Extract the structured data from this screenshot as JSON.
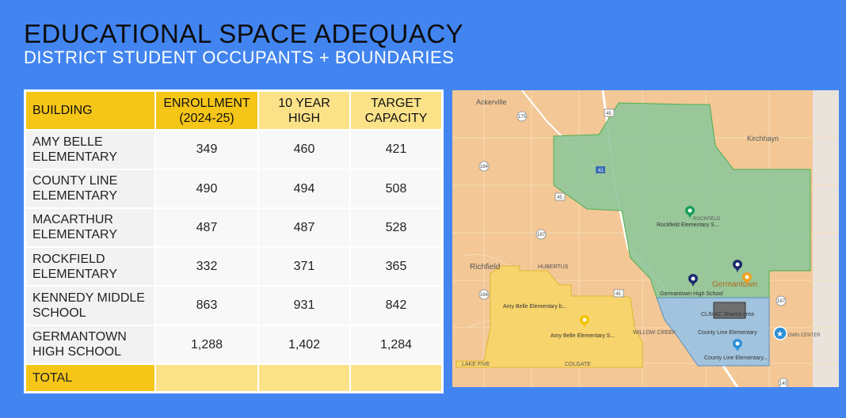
{
  "header": {
    "title": "EDUCATIONAL SPACE ADEQUACY",
    "subtitle": "DISTRICT STUDENT OCCUPANTS + BOUNDARIES"
  },
  "table": {
    "columns": {
      "building": "BUILDING",
      "enrollment_1": "ENROLLMENT",
      "enrollment_2": "(2024-25)",
      "high_1": "10 YEAR",
      "high_2": "HIGH",
      "capacity_1": "TARGET",
      "capacity_2": "CAPACITY"
    },
    "rows": [
      {
        "name_1": "AMY BELLE",
        "name_2": "ELEMENTARY",
        "enrollment": "349",
        "high": "460",
        "capacity": "421"
      },
      {
        "name_1": "COUNTY LINE",
        "name_2": "ELEMENTARY",
        "enrollment": "490",
        "high": "494",
        "capacity": "508"
      },
      {
        "name_1": "MACARTHUR",
        "name_2": "ELEMENTARY",
        "enrollment": "487",
        "high": "487",
        "capacity": "528"
      },
      {
        "name_1": "ROCKFIELD",
        "name_2": "ELEMENTARY",
        "enrollment": "332",
        "high": "371",
        "capacity": "365"
      },
      {
        "name_1": "KENNEDY MIDDLE",
        "name_2": "SCHOOL",
        "enrollment": "863",
        "high": "931",
        "capacity": "842"
      },
      {
        "name_1": "GERMANTOWN",
        "name_2": "HIGH SCHOOL",
        "enrollment": "1,288",
        "high": "1,402",
        "capacity": "1,284"
      }
    ],
    "total_label": "TOTAL"
  },
  "map": {
    "places": {
      "ackerville": "Ackerville",
      "kirchhayn": "Kirchhayn",
      "richfield": "Richfield",
      "hubertus": "HUBERTUS",
      "willow_creek": "WILLOW CREEK",
      "colgate": "COLGATE",
      "lake_five": "LAKE FIVE",
      "germantown": "Germantown",
      "rockfield_town": "ROCKFIELD",
      "town_center": "TOWN CENTER"
    },
    "roads": {
      "r175": "175",
      "r45a": "45",
      "r41": "41",
      "r164a": "164",
      "r45b": "45",
      "r167a": "167",
      "r164b": "164",
      "r45c": "45",
      "r167b": "167",
      "r145": "145"
    },
    "schools": {
      "rockfield": "Rockfield Elementary S...",
      "germantown_hs": "Germantown High School",
      "amy_belle_b": "Amy Belle Elementary b...",
      "amy_belle_s": "Amy Belle Elementary S...",
      "shared_area": "CL/MAC Shared area",
      "county_line_1": "County Line Elementary",
      "county_line_2": "County Line Elementary..."
    },
    "colors": {
      "rockfield_zone": "#8fc79a",
      "amy_belle_zone": "#f8d56a",
      "county_line_zone": "#9cc3e0",
      "shared_zone": "#6f6f6f",
      "background": "#f3c796"
    }
  }
}
